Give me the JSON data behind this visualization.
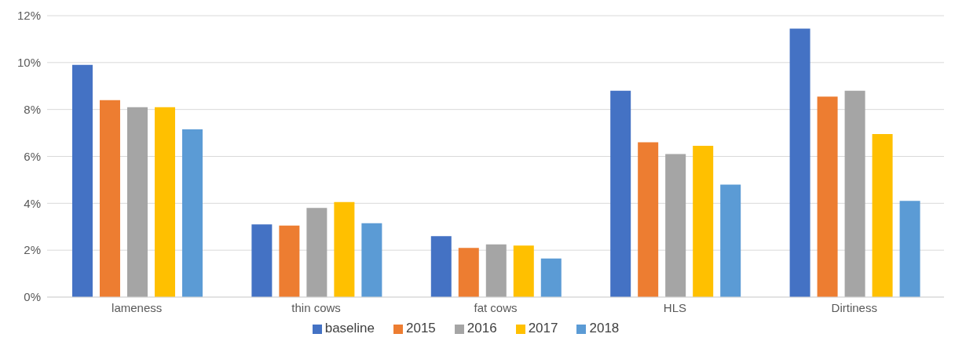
{
  "chart_data": {
    "type": "bar",
    "categories": [
      "lameness",
      "thin cows",
      "fat cows",
      "HLS",
      "Dirtiness"
    ],
    "series": [
      {
        "name": "baseline",
        "color": "#4472c4",
        "values": [
          9.9,
          3.1,
          2.6,
          8.8,
          11.45
        ]
      },
      {
        "name": "2015",
        "color": "#ed7d31",
        "values": [
          8.4,
          3.05,
          2.1,
          6.6,
          8.55
        ]
      },
      {
        "name": "2016",
        "color": "#a5a5a5",
        "values": [
          8.1,
          3.8,
          2.25,
          6.1,
          8.8
        ]
      },
      {
        "name": "2017",
        "color": "#ffc000",
        "values": [
          8.1,
          4.05,
          2.2,
          6.45,
          6.95
        ]
      },
      {
        "name": "2018",
        "color": "#5b9bd5",
        "values": [
          7.15,
          3.15,
          1.65,
          4.8,
          4.1
        ]
      }
    ],
    "ylim": [
      0,
      12
    ],
    "yticks": [
      {
        "value": 0,
        "label": "0%"
      },
      {
        "value": 2,
        "label": "2%"
      },
      {
        "value": 4,
        "label": "4%"
      },
      {
        "value": 6,
        "label": "6%"
      },
      {
        "value": 8,
        "label": "8%"
      },
      {
        "value": 10,
        "label": "10%"
      },
      {
        "value": 12,
        "label": "12%"
      }
    ],
    "grid": "y",
    "legend": "bottom"
  }
}
